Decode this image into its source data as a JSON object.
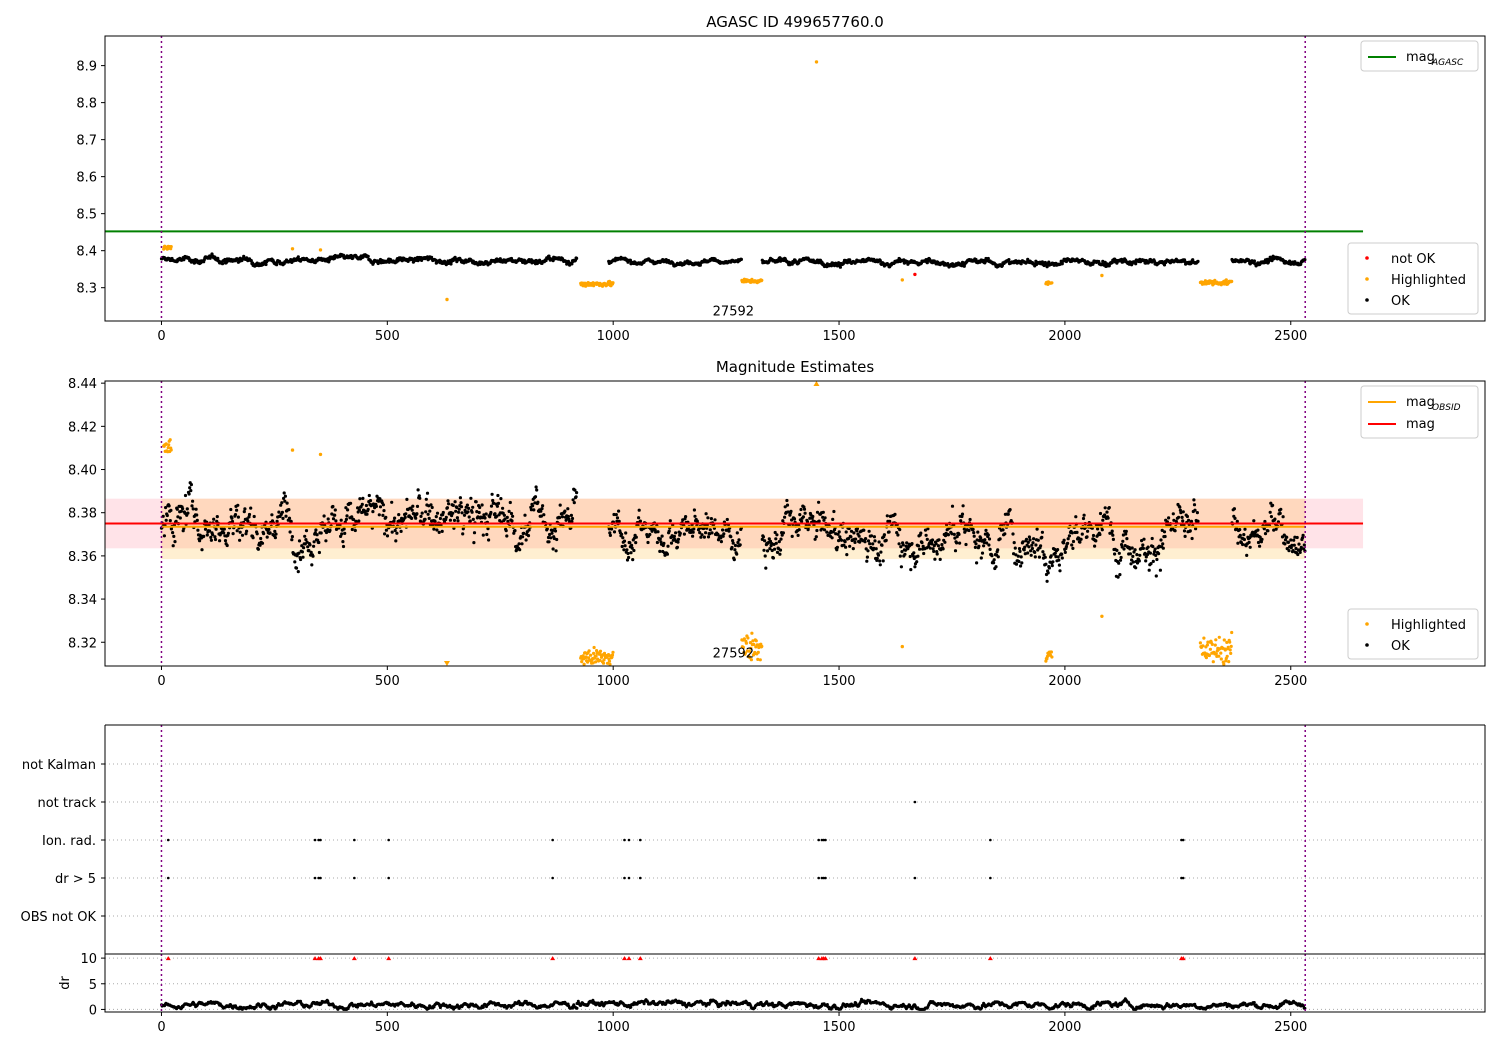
{
  "chart_data": [
    {
      "id": "agasc",
      "type": "scatter",
      "title": "AGASC ID 499657760.0",
      "xlim": [
        -125,
        2930
      ],
      "ylim": [
        8.21,
        8.98
      ],
      "xticks": [
        0,
        500,
        1000,
        1500,
        2000,
        2500
      ],
      "yticks": [
        8.3,
        8.4,
        8.5,
        8.6,
        8.7,
        8.8,
        8.9
      ],
      "ytick_labels": [
        "8.3",
        "8.4",
        "8.5",
        "8.6",
        "8.7",
        "8.8",
        "8.9"
      ],
      "obsid_markers": [
        0,
        2532
      ],
      "annotation": {
        "text": "27592",
        "x": 1266,
        "y": 8.225
      },
      "hlines": [
        {
          "name": "mag",
          "sub": "AGASC",
          "y": 8.452,
          "x": [
            -125,
            2660
          ],
          "color": "#008000"
        }
      ],
      "ok_segments": [
        {
          "x": [
            0,
            920
          ],
          "mean": 8.375,
          "amp": 0.011
        },
        {
          "x": [
            990,
            1285
          ],
          "mean": 8.372,
          "amp": 0.008
        },
        {
          "x": [
            1330,
            2295
          ],
          "mean": 8.368,
          "amp": 0.011
        },
        {
          "x": [
            2370,
            2532
          ],
          "mean": 8.372,
          "amp": 0.01
        }
      ],
      "highlighted_clusters": [
        {
          "x": [
            5,
            22
          ],
          "mean": 8.408,
          "spread": 0.006
        },
        {
          "x": [
            928,
            1000
          ],
          "mean": 8.31,
          "spread": 0.006
        },
        {
          "x": [
            1285,
            1330
          ],
          "mean": 8.318,
          "spread": 0.005
        },
        {
          "x": [
            1958,
            1972
          ],
          "mean": 8.312,
          "spread": 0.004
        },
        {
          "x": [
            2300,
            2370
          ],
          "mean": 8.314,
          "spread": 0.007
        }
      ],
      "highlighted_points": [
        {
          "x": 290,
          "y": 8.405
        },
        {
          "x": 352,
          "y": 8.402
        },
        {
          "x": 632,
          "y": 8.268
        },
        {
          "x": 1450,
          "y": 8.91
        },
        {
          "x": 1640,
          "y": 8.321
        },
        {
          "x": 2082,
          "y": 8.333
        }
      ],
      "notok_points": [
        {
          "x": 1668,
          "y": 8.336
        }
      ],
      "legend_top": [
        {
          "label": "mag",
          "sub": "AGASC",
          "color": "#008000"
        }
      ],
      "legend_bottom": [
        {
          "label": "not OK",
          "color": "#ff0000"
        },
        {
          "label": "Highlighted",
          "color": "#ffa500"
        },
        {
          "label": "OK",
          "color": "#000000"
        }
      ]
    },
    {
      "id": "estimates",
      "type": "scatter",
      "title": "Magnitude Estimates",
      "xlim": [
        -125,
        2930
      ],
      "ylim": [
        8.309,
        8.441
      ],
      "xticks": [
        0,
        500,
        1000,
        1500,
        2000,
        2500
      ],
      "yticks": [
        8.32,
        8.34,
        8.36,
        8.38,
        8.4,
        8.42,
        8.44
      ],
      "ytick_labels": [
        "8.32",
        "8.34",
        "8.36",
        "8.38",
        "8.40",
        "8.42",
        "8.44"
      ],
      "obsid_markers": [
        0,
        2532
      ],
      "annotation": {
        "text": "27592",
        "x": 1266,
        "y": 8.313
      },
      "bands": [
        {
          "x": [
            -125,
            2660
          ],
          "y": [
            8.3635,
            8.3865
          ],
          "color": "#ffc0cb",
          "opacity": 0.45
        },
        {
          "x": [
            0,
            2532
          ],
          "y": [
            8.3585,
            8.3865
          ],
          "color": "#ffa500",
          "opacity": 0.18
        }
      ],
      "hlines": [
        {
          "name": "mag",
          "sub": "OBSID",
          "y": 8.3735,
          "x": [
            0,
            2532
          ],
          "color": "#ffa500"
        },
        {
          "name": "mag",
          "sub": "",
          "y": 8.375,
          "x": [
            -125,
            2660
          ],
          "color": "#ff0000"
        }
      ],
      "ok_segments": [
        {
          "x": [
            0,
            920
          ],
          "mean": 8.377,
          "amp": 0.014
        },
        {
          "x": [
            990,
            1285
          ],
          "mean": 8.372,
          "amp": 0.011
        },
        {
          "x": [
            1330,
            2295
          ],
          "mean": 8.37,
          "amp": 0.014
        },
        {
          "x": [
            2370,
            2532
          ],
          "mean": 8.372,
          "amp": 0.012
        }
      ],
      "highlighted_clusters": [
        {
          "x": [
            5,
            22
          ],
          "mean": 8.41,
          "spread": 0.004
        },
        {
          "x": [
            928,
            1000
          ],
          "mean": 8.313,
          "spread": 0.004
        },
        {
          "x": [
            1285,
            1330
          ],
          "mean": 8.318,
          "spread": 0.006
        },
        {
          "x": [
            1958,
            1972
          ],
          "mean": 8.314,
          "spread": 0.003
        },
        {
          "x": [
            2300,
            2370
          ],
          "mean": 8.316,
          "spread": 0.006
        }
      ],
      "highlighted_points": [
        {
          "x": 290,
          "y": 8.409
        },
        {
          "x": 352,
          "y": 8.407
        },
        {
          "x": 1640,
          "y": 8.318
        },
        {
          "x": 2082,
          "y": 8.332
        }
      ],
      "out_of_range": [
        {
          "x": 632,
          "dir": "down"
        },
        {
          "x": 1450,
          "dir": "up"
        }
      ],
      "legend_top": [
        {
          "label": "mag",
          "sub": "OBSID",
          "color": "#ffa500"
        },
        {
          "label": "mag",
          "sub": "",
          "color": "#ff0000"
        }
      ],
      "legend_bottom": [
        {
          "label": "Highlighted",
          "color": "#ffa500"
        },
        {
          "label": "OK",
          "color": "#000000"
        }
      ]
    },
    {
      "id": "flags",
      "type": "scatter",
      "xlim": [
        -125,
        2930
      ],
      "rows": [
        "not Kalman",
        "not track",
        "Ion. rad.",
        "dr > 5",
        "OBS not OK"
      ],
      "row_points": {
        "not Kalman": [],
        "not track": [
          1668
        ],
        "Ion. rad.": [
          15,
          340,
          348,
          352,
          427,
          503,
          866,
          1025,
          1035,
          1060,
          1455,
          1462,
          1466,
          1470,
          1835,
          2258,
          2262
        ],
        "dr > 5": [
          15,
          340,
          348,
          352,
          427,
          503,
          866,
          1025,
          1035,
          1060,
          1455,
          1462,
          1466,
          1470,
          1668,
          1835,
          2258,
          2262
        ],
        "OBS not OK": []
      },
      "obsid_markers": [
        0,
        2532
      ]
    },
    {
      "id": "dr",
      "type": "scatter",
      "xlim": [
        -125,
        2930
      ],
      "ylim": [
        -0.5,
        10.8
      ],
      "ylabel": "dr",
      "xticks": [
        0,
        500,
        1000,
        1500,
        2000,
        2500
      ],
      "yticks": [
        0,
        5,
        10
      ],
      "ytick_labels": [
        "0",
        "5",
        "10"
      ],
      "red_markers": [
        15,
        340,
        348,
        352,
        427,
        503,
        866,
        1025,
        1035,
        1060,
        1455,
        1462,
        1466,
        1470,
        1668,
        1835,
        2258,
        2262
      ],
      "dr_segments": [
        {
          "x": [
            0,
            920
          ],
          "mean": 0.9
        },
        {
          "x": [
            920,
            1330
          ],
          "mean": 1.1
        },
        {
          "x": [
            1330,
            2532
          ],
          "mean": 0.9
        }
      ],
      "obsid_markers": [
        0,
        2532
      ]
    }
  ]
}
